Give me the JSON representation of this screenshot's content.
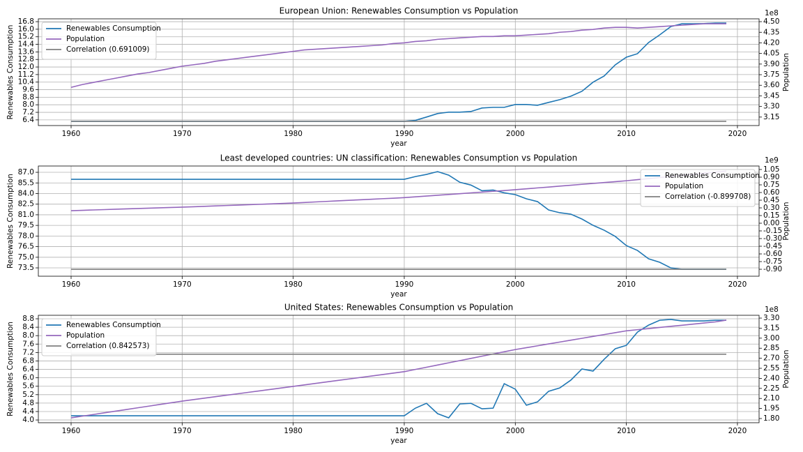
{
  "chart_data": [
    {
      "type": "line",
      "title": "European Union: Renewables Consumption vs Population",
      "xlabel": "year",
      "ylabel": "Renewables Consumption",
      "y2label": "Population",
      "y2offset": "1e8",
      "legend": "upper left",
      "grid": true,
      "x": [
        1960,
        1961,
        1962,
        1963,
        1964,
        1965,
        1966,
        1967,
        1968,
        1969,
        1970,
        1971,
        1972,
        1973,
        1974,
        1975,
        1976,
        1977,
        1978,
        1979,
        1980,
        1981,
        1982,
        1983,
        1984,
        1985,
        1986,
        1987,
        1988,
        1989,
        1990,
        1991,
        1992,
        1993,
        1994,
        1995,
        1996,
        1997,
        1998,
        1999,
        2000,
        2001,
        2002,
        2003,
        2004,
        2005,
        2006,
        2007,
        2008,
        2009,
        2010,
        2011,
        2012,
        2013,
        2014,
        2015,
        2016,
        2017,
        2018,
        2019
      ],
      "xlim": [
        1957.05,
        2021.95
      ],
      "xticks": [
        1960,
        1970,
        1980,
        1990,
        2000,
        2010,
        2020
      ],
      "ylim": [
        5.8,
        17.1
      ],
      "yticks": [
        6.4,
        7.2,
        {
          "value": 8,
          "label": "8.0"
        },
        8.8,
        9.6,
        10.4,
        11.2,
        {
          "value": 12,
          "label": "12.0"
        },
        12.8,
        13.6,
        14.4,
        15.2,
        {
          "value": 16,
          "label": "16.0"
        },
        16.8
      ],
      "y2lim": [
        3.03,
        4.54
      ],
      "y2ticks": [
        3.15,
        {
          "value": 3.3,
          "label": "3.30"
        },
        3.45,
        {
          "value": 3.6,
          "label": "3.60"
        },
        3.75,
        {
          "value": 3.9,
          "label": "3.90"
        },
        4.05,
        {
          "value": 4.2,
          "label": "4.20"
        },
        4.35,
        {
          "value": 4.5,
          "label": "4.50"
        }
      ],
      "series": [
        {
          "name": "Renewables Consumption",
          "color": "#1f77b4",
          "values": [
            6.25,
            6.25,
            6.25,
            6.25,
            6.25,
            6.25,
            6.25,
            6.25,
            6.25,
            6.25,
            6.25,
            6.25,
            6.25,
            6.25,
            6.25,
            6.25,
            6.25,
            6.25,
            6.25,
            6.25,
            6.25,
            6.25,
            6.25,
            6.25,
            6.25,
            6.25,
            6.25,
            6.25,
            6.25,
            6.25,
            6.25,
            6.35,
            6.7,
            7.07,
            7.22,
            7.22,
            7.29,
            7.66,
            7.73,
            7.73,
            8.03,
            8.03,
            7.95,
            8.25,
            8.54,
            8.91,
            9.43,
            10.39,
            11.05,
            12.23,
            13.04,
            13.41,
            14.59,
            15.4,
            16.28,
            16.58,
            16.58,
            16.6,
            16.65,
            16.65
          ]
        },
        {
          "name": "Population",
          "color": "#9467bd",
          "axis": "y2",
          "values": [
            3.57,
            3.61,
            3.64,
            3.67,
            3.7,
            3.73,
            3.76,
            3.78,
            3.81,
            3.84,
            3.87,
            3.89,
            3.91,
            3.94,
            3.96,
            3.98,
            4.0,
            4.02,
            4.04,
            4.06,
            4.08,
            4.1,
            4.11,
            4.12,
            4.13,
            4.14,
            4.15,
            4.16,
            4.17,
            4.19,
            4.2,
            4.22,
            4.23,
            4.25,
            4.26,
            4.27,
            4.28,
            4.29,
            4.29,
            4.3,
            4.3,
            4.31,
            4.32,
            4.33,
            4.35,
            4.36,
            4.38,
            4.39,
            4.41,
            4.42,
            4.42,
            4.41,
            4.42,
            4.43,
            4.44,
            4.45,
            4.46,
            4.47,
            4.47,
            4.47
          ]
        },
        {
          "name": "Correlation (0.691009)",
          "color": "#7f7f7f",
          "axis": "y2",
          "value": 3.09
        }
      ]
    },
    {
      "type": "line",
      "title": "Least developed countries: UN classification: Renewables Consumption vs Population",
      "xlabel": "year",
      "ylabel": "Renewables Consumption",
      "y2label": "Population",
      "y2offset": "1e9",
      "legend": "upper right",
      "grid": true,
      "x": [
        1960,
        1961,
        1962,
        1963,
        1964,
        1965,
        1966,
        1967,
        1968,
        1969,
        1970,
        1971,
        1972,
        1973,
        1974,
        1975,
        1976,
        1977,
        1978,
        1979,
        1980,
        1981,
        1982,
        1983,
        1984,
        1985,
        1986,
        1987,
        1988,
        1989,
        1990,
        1991,
        1992,
        1993,
        1994,
        1995,
        1996,
        1997,
        1998,
        1999,
        2000,
        2001,
        2002,
        2003,
        2004,
        2005,
        2006,
        2007,
        2008,
        2009,
        2010,
        2011,
        2012,
        2013,
        2014,
        2015,
        2016,
        2017,
        2018,
        2019
      ],
      "xlim": [
        1957.05,
        2021.95
      ],
      "xticks": [
        1960,
        1970,
        1980,
        1990,
        2000,
        2010,
        2020
      ],
      "ylim": [
        72.32,
        87.89
      ],
      "yticks": [
        73.5,
        {
          "value": 75,
          "label": "75.0"
        },
        76.5,
        {
          "value": 78,
          "label": "78.0"
        },
        79.5,
        {
          "value": 81,
          "label": "81.0"
        },
        82.5,
        {
          "value": 84,
          "label": "84.0"
        },
        85.5,
        {
          "value": 87,
          "label": "87.0"
        }
      ],
      "y2lim": [
        -1.036,
        1.118
      ],
      "y2ticks": [
        {
          "value": -0.9,
          "label": "-0.90"
        },
        -0.75,
        {
          "value": -0.6,
          "label": "-0.60"
        },
        -0.45,
        {
          "value": -0.3,
          "label": "-0.30"
        },
        -0.15,
        {
          "value": 0,
          "label": "0.00"
        },
        0.15,
        {
          "value": 0.3,
          "label": "0.30"
        },
        0.45,
        {
          "value": 0.6,
          "label": "0.60"
        },
        0.75,
        {
          "value": 0.9,
          "label": "0.90"
        },
        1.05
      ],
      "series": [
        {
          "name": "Renewables Consumption",
          "color": "#1f77b4",
          "values": [
            86.01,
            86.01,
            86.01,
            86.01,
            86.01,
            86.01,
            86.01,
            86.01,
            86.01,
            86.01,
            86.01,
            86.01,
            86.01,
            86.01,
            86.01,
            86.01,
            86.01,
            86.01,
            86.01,
            86.01,
            86.01,
            86.01,
            86.01,
            86.01,
            86.01,
            86.01,
            86.01,
            86.01,
            86.01,
            86.01,
            86.01,
            86.4,
            86.7,
            87.1,
            86.6,
            85.6,
            85.2,
            84.4,
            84.5,
            84.1,
            83.85,
            83.26,
            82.86,
            81.68,
            81.29,
            81.09,
            80.4,
            79.51,
            78.82,
            77.94,
            76.65,
            75.96,
            74.78,
            74.29,
            73.5,
            73.3,
            73.3,
            73.3,
            73.3,
            73.3
          ]
        },
        {
          "name": "Population",
          "color": "#9467bd",
          "axis": "y2",
          "values": [
            0.245,
            0.252,
            0.259,
            0.266,
            0.273,
            0.28,
            0.287,
            0.294,
            0.301,
            0.308,
            0.314,
            0.322,
            0.33,
            0.338,
            0.346,
            0.354,
            0.362,
            0.37,
            0.378,
            0.386,
            0.395,
            0.405,
            0.416,
            0.426,
            0.437,
            0.447,
            0.458,
            0.468,
            0.479,
            0.489,
            0.5,
            0.515,
            0.531,
            0.546,
            0.562,
            0.577,
            0.593,
            0.608,
            0.624,
            0.639,
            0.655,
            0.672,
            0.69,
            0.707,
            0.725,
            0.742,
            0.76,
            0.777,
            0.795,
            0.812,
            0.83,
            0.851,
            0.872,
            0.893,
            0.914,
            0.935,
            0.956,
            0.977,
            0.998,
            1.02
          ]
        },
        {
          "name": "Correlation (-0.899708)",
          "color": "#7f7f7f",
          "axis": "y2",
          "value": -0.9
        }
      ]
    },
    {
      "type": "line",
      "title": "United States: Renewables Consumption vs Population",
      "xlabel": "year",
      "ylabel": "Renewables Consumption",
      "y2label": "Population",
      "y2offset": "1e8",
      "legend": "upper left",
      "grid": true,
      "x": [
        1960,
        1961,
        1962,
        1963,
        1964,
        1965,
        1966,
        1967,
        1968,
        1969,
        1970,
        1971,
        1972,
        1973,
        1974,
        1975,
        1976,
        1977,
        1978,
        1979,
        1980,
        1981,
        1982,
        1983,
        1984,
        1985,
        1986,
        1987,
        1988,
        1989,
        1990,
        1991,
        1992,
        1993,
        1994,
        1995,
        1996,
        1997,
        1998,
        1999,
        2000,
        2001,
        2002,
        2003,
        2004,
        2005,
        2006,
        2007,
        2008,
        2009,
        2010,
        2011,
        2012,
        2013,
        2014,
        2015,
        2016,
        2017,
        2018,
        2019
      ],
      "xlim": [
        1957.05,
        2021.95
      ],
      "xticks": [
        1960,
        1970,
        1980,
        1990,
        2000,
        2010,
        2020
      ],
      "ylim": [
        3.87,
        8.966
      ],
      "yticks": [
        {
          "value": 4,
          "label": "4.0"
        },
        4.4,
        4.8,
        5.2,
        5.6,
        {
          "value": 6,
          "label": "6.0"
        },
        6.4,
        6.8,
        7.2,
        7.6,
        {
          "value": 8,
          "label": "8.0"
        },
        8.4,
        8.8
      ],
      "y2lim": [
        1.7375,
        3.342
      ],
      "y2ticks": [
        {
          "value": 1.8,
          "label": "1.80"
        },
        1.95,
        {
          "value": 2.1,
          "label": "2.10"
        },
        2.25,
        {
          "value": 2.4,
          "label": "2.40"
        },
        2.55,
        {
          "value": 2.7,
          "label": "2.70"
        },
        2.85,
        {
          "value": 3,
          "label": "3.00"
        },
        3.15,
        {
          "value": 3.3,
          "label": "3.30"
        }
      ],
      "series": [
        {
          "name": "Renewables Consumption",
          "color": "#1f77b4",
          "values": [
            4.2,
            4.2,
            4.2,
            4.2,
            4.2,
            4.2,
            4.2,
            4.2,
            4.2,
            4.2,
            4.2,
            4.2,
            4.2,
            4.2,
            4.2,
            4.2,
            4.2,
            4.2,
            4.2,
            4.2,
            4.2,
            4.2,
            4.2,
            4.2,
            4.2,
            4.2,
            4.2,
            4.2,
            4.2,
            4.2,
            4.2,
            4.56,
            4.79,
            4.3,
            4.1,
            4.76,
            4.79,
            4.53,
            4.56,
            5.72,
            5.46,
            4.7,
            4.86,
            5.36,
            5.52,
            5.89,
            6.42,
            6.32,
            6.88,
            7.38,
            7.54,
            8.17,
            8.5,
            8.73,
            8.77,
            8.7,
            8.7,
            8.7,
            8.73,
            8.73
          ]
        },
        {
          "name": "Population",
          "color": "#9467bd",
          "axis": "y2",
          "values": [
            1.81,
            1.835,
            1.86,
            1.885,
            1.91,
            1.935,
            1.96,
            1.985,
            2.01,
            2.035,
            2.06,
            2.082,
            2.104,
            2.126,
            2.148,
            2.17,
            2.192,
            2.214,
            2.236,
            2.258,
            2.28,
            2.302,
            2.324,
            2.346,
            2.368,
            2.39,
            2.412,
            2.434,
            2.456,
            2.478,
            2.5,
            2.533,
            2.566,
            2.599,
            2.632,
            2.665,
            2.698,
            2.731,
            2.764,
            2.797,
            2.83,
            2.858,
            2.886,
            2.914,
            2.942,
            2.97,
            2.998,
            3.026,
            3.054,
            3.082,
            3.11,
            3.127,
            3.143,
            3.16,
            3.177,
            3.193,
            3.21,
            3.227,
            3.243,
            3.27
          ]
        },
        {
          "name": "Correlation (0.842573)",
          "color": "#7f7f7f",
          "axis": "y2",
          "value": 2.76
        }
      ]
    }
  ]
}
